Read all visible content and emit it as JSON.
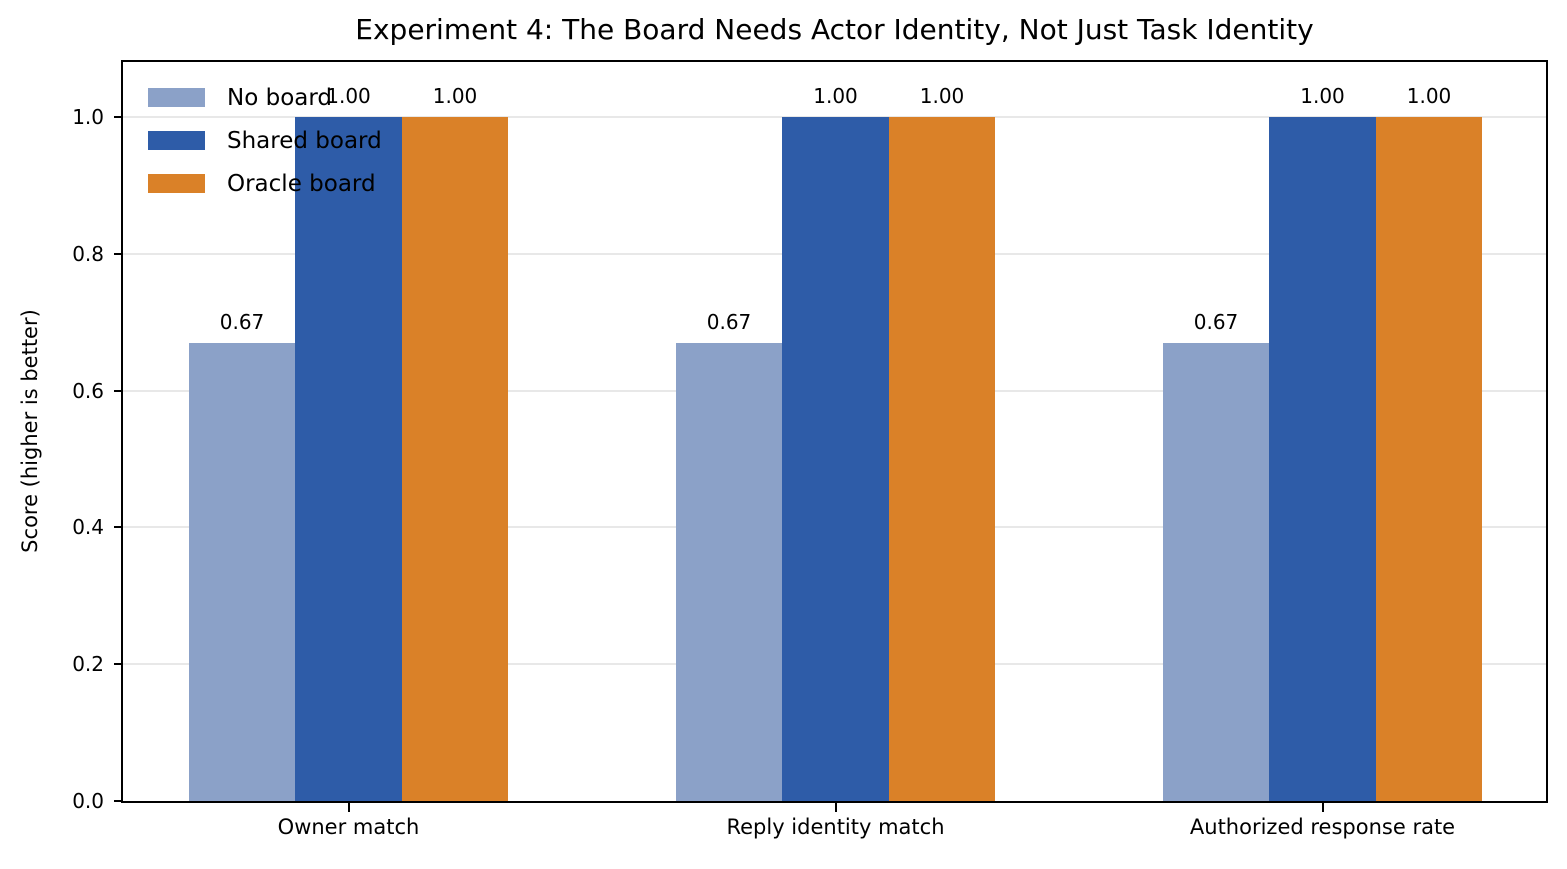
{
  "chart_data": {
    "type": "bar",
    "title": "Experiment 4: The Board Needs Actor Identity, Not Just Task Identity",
    "xlabel": "",
    "ylabel": "Score (higher is better)",
    "categories": [
      "Owner match",
      "Reply identity match",
      "Authorized response rate"
    ],
    "series": [
      {
        "name": "No board",
        "color": "#8BA1C8",
        "values": [
          0.67,
          0.67,
          0.67
        ],
        "labels": [
          "0.67",
          "0.67",
          "0.67"
        ]
      },
      {
        "name": "Shared board",
        "color": "#2E5CA8",
        "values": [
          1.0,
          1.0,
          1.0
        ],
        "labels": [
          "1.00",
          "1.00",
          "1.00"
        ]
      },
      {
        "name": "Oracle board",
        "color": "#DA8128",
        "values": [
          1.0,
          1.0,
          1.0
        ],
        "labels": [
          "1.00",
          "1.00",
          "1.00"
        ]
      }
    ],
    "ylim": [
      0.0,
      1.08
    ],
    "yticks": [
      "0.0",
      "0.2",
      "0.4",
      "0.6",
      "0.8",
      "1.0"
    ],
    "ytick_values": [
      0.0,
      0.2,
      0.4,
      0.6,
      0.8,
      1.0
    ],
    "grid": true,
    "legend_position": "upper left",
    "colors": {
      "axis": "#000000",
      "gridline": "#e8e8e8",
      "text": "#000000",
      "background": "#ffffff"
    }
  }
}
